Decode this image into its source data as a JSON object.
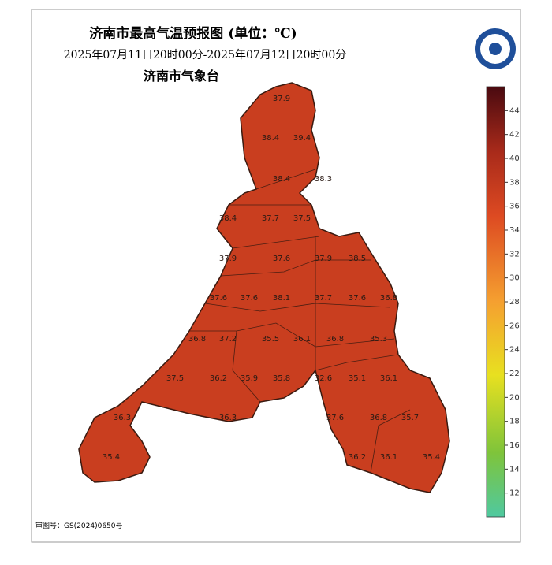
{
  "header": {
    "title": "济南市最高气温预报图  (单位：℃)",
    "time_range": "2025年07月11日20时00分-2025年07月12日20时00分",
    "agency": "济南市气象台"
  },
  "colorbar": {
    "lim": [
      10,
      46
    ],
    "ticks": [
      12,
      14,
      16,
      18,
      20,
      22,
      24,
      26,
      28,
      30,
      32,
      34,
      36,
      38,
      40,
      42,
      44
    ]
  },
  "stations": [
    "37.9",
    "38.4",
    "39.4",
    "38.4",
    "38.3",
    "38.4",
    "37.7",
    "37.5",
    "37.9",
    "37.6",
    "37.9",
    "38.5",
    "37.6",
    "37.6",
    "38.1",
    "37.7",
    "37.6",
    "36.8",
    "36.8",
    "37.2",
    "35.5",
    "36.1",
    "36.8",
    "35.3",
    "37.5",
    "36.2",
    "35.9",
    "35.8",
    "32.6",
    "35.1",
    "36.1",
    "36.3",
    "36.3",
    "37.6",
    "36.8",
    "35.7",
    "35.4",
    "36.2",
    "36.1",
    "35.4"
  ],
  "footer": "审图号：GS(2024)0650号"
}
